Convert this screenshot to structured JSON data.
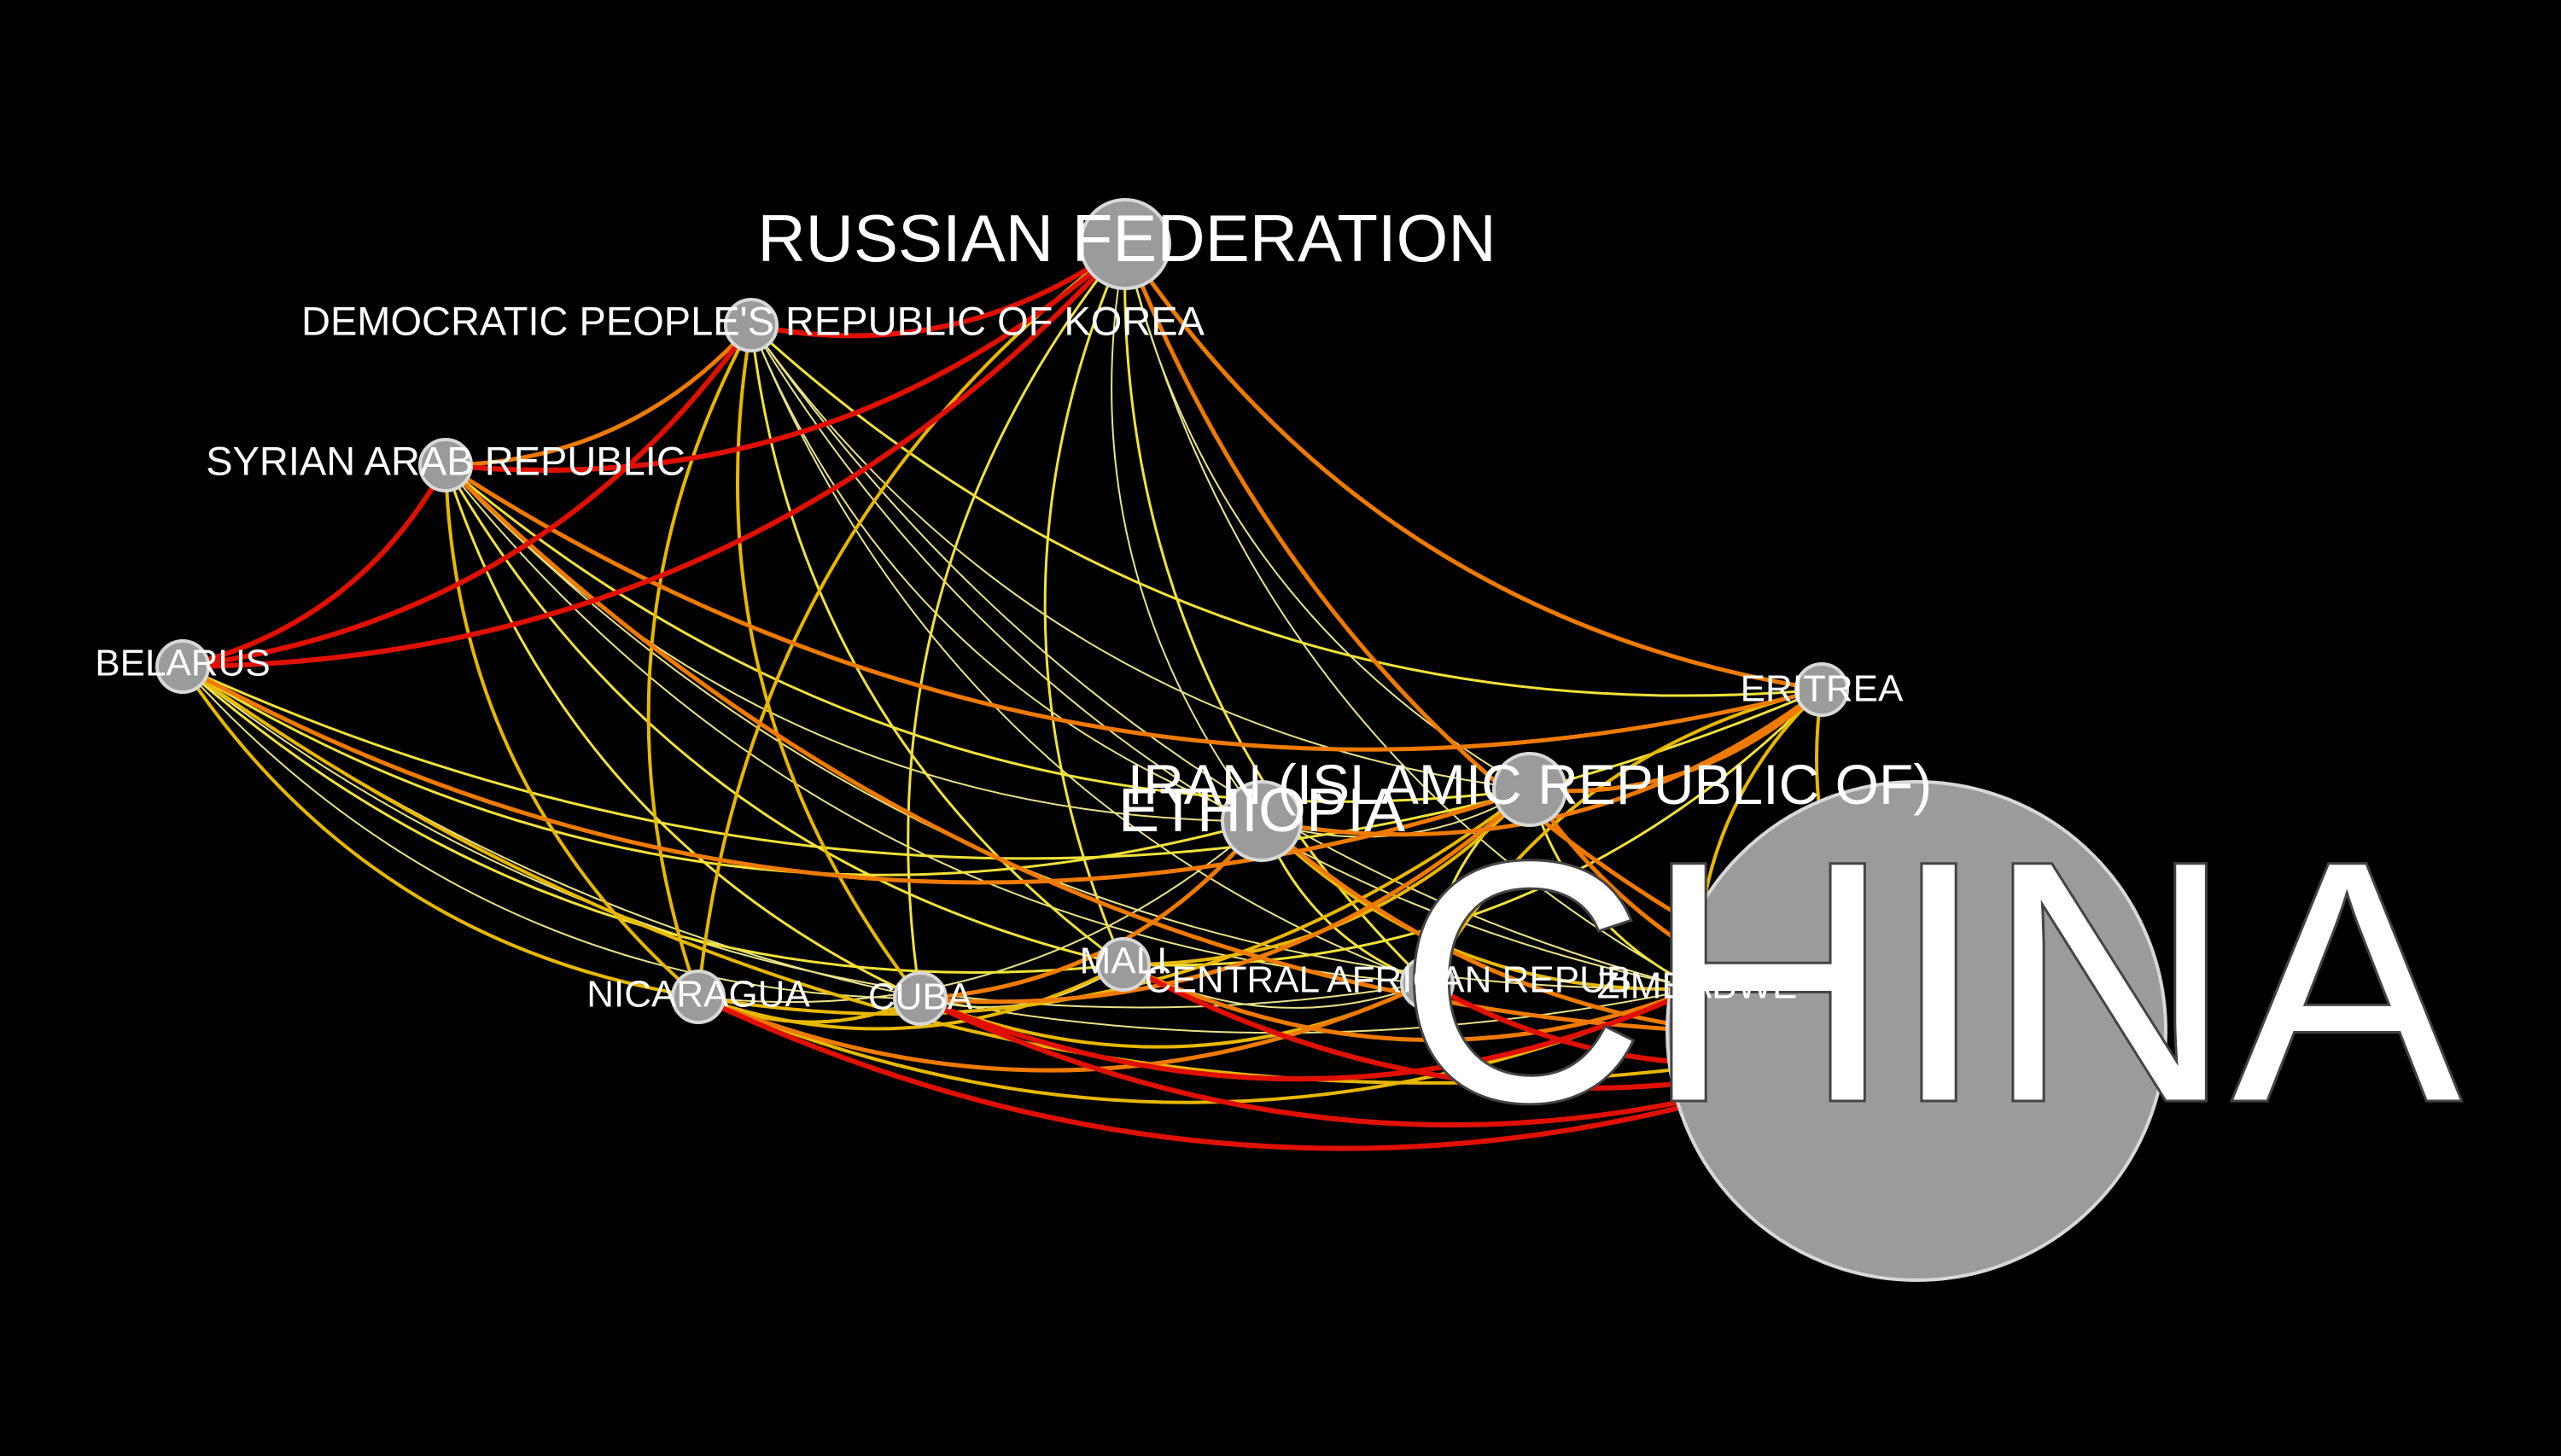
{
  "colors": {
    "background": "#000000",
    "node_fill": "#9b9b9b",
    "node_stroke": "#d8d8d8",
    "label": "#ffffff",
    "edge_weak": "#e8e28a",
    "edge_light": "#f2e23a",
    "edge_medium": "#e8b800",
    "edge_strong": "#ee7a00",
    "edge_strongest": "#e01000"
  },
  "nodes": [
    {
      "id": "china",
      "label": "CHINA",
      "size": "huge"
    },
    {
      "id": "russia",
      "label": "RUSSIAN FEDERATION",
      "size": "large"
    },
    {
      "id": "dprk",
      "label": "DEMOCRATIC PEOPLE'S REPUBLIC OF KOREA",
      "size": "small"
    },
    {
      "id": "syria",
      "label": "SYRIAN ARAB REPUBLIC",
      "size": "small"
    },
    {
      "id": "belarus",
      "label": "BELARUS",
      "size": "small"
    },
    {
      "id": "eritrea",
      "label": "ERITREA",
      "size": "small"
    },
    {
      "id": "iran",
      "label": "IRAN (ISLAMIC REPUBLIC OF)",
      "size": "medium"
    },
    {
      "id": "ethiopia",
      "label": "ETHIOPIA",
      "size": "medium"
    },
    {
      "id": "nicaragua",
      "label": "NICARAGUA",
      "size": "small"
    },
    {
      "id": "cuba",
      "label": "CUBA",
      "size": "small"
    },
    {
      "id": "mali",
      "label": "MALI",
      "size": "small"
    },
    {
      "id": "car",
      "label": "CENTRAL AFRICAN REPUB",
      "size": "small"
    },
    {
      "id": "zimbabwe",
      "label": "ZIMBABWE",
      "size": "small"
    }
  ],
  "edges": [
    {
      "source": "belarus",
      "target": "russia",
      "weight": 5
    },
    {
      "source": "belarus",
      "target": "dprk",
      "weight": 5
    },
    {
      "source": "belarus",
      "target": "syria",
      "weight": 5
    },
    {
      "source": "dprk",
      "target": "russia",
      "weight": 5
    },
    {
      "source": "syria",
      "target": "russia",
      "weight": 5
    },
    {
      "source": "syria",
      "target": "dprk",
      "weight": 4
    },
    {
      "source": "cuba",
      "target": "china",
      "weight": 5
    },
    {
      "source": "mali",
      "target": "china",
      "weight": 5
    },
    {
      "source": "cuba",
      "target": "zimbabwe",
      "weight": 5
    },
    {
      "source": "car",
      "target": "china",
      "weight": 5
    },
    {
      "source": "nicaragua",
      "target": "china",
      "weight": 5
    },
    {
      "source": "syria",
      "target": "eritrea",
      "weight": 4
    },
    {
      "source": "russia",
      "target": "eritrea",
      "weight": 4
    },
    {
      "source": "russia",
      "target": "china",
      "weight": 4
    },
    {
      "source": "syria",
      "target": "china",
      "weight": 4
    },
    {
      "source": "belarus",
      "target": "iran",
      "weight": 4
    },
    {
      "source": "ethiopia",
      "target": "eritrea",
      "weight": 4
    },
    {
      "source": "iran",
      "target": "eritrea",
      "weight": 4
    },
    {
      "source": "ethiopia",
      "target": "china",
      "weight": 4
    },
    {
      "source": "iran",
      "target": "china",
      "weight": 4
    },
    {
      "source": "cuba",
      "target": "iran",
      "weight": 4
    },
    {
      "source": "cuba",
      "target": "ethiopia",
      "weight": 4
    },
    {
      "source": "mali",
      "target": "zimbabwe",
      "weight": 4
    },
    {
      "source": "nicaragua",
      "target": "car",
      "weight": 4
    },
    {
      "source": "dprk",
      "target": "cuba",
      "weight": 3
    },
    {
      "source": "dprk",
      "target": "nicaragua",
      "weight": 3
    },
    {
      "source": "russia",
      "target": "nicaragua",
      "weight": 3
    },
    {
      "source": "belarus",
      "target": "nicaragua",
      "weight": 3
    },
    {
      "source": "belarus",
      "target": "china",
      "weight": 3
    },
    {
      "source": "syria",
      "target": "nicaragua",
      "weight": 3
    },
    {
      "source": "nicaragua",
      "target": "cuba",
      "weight": 3
    },
    {
      "source": "nicaragua",
      "target": "mali",
      "weight": 3
    },
    {
      "source": "nicaragua",
      "target": "zimbabwe",
      "weight": 3
    },
    {
      "source": "nicaragua",
      "target": "iran",
      "weight": 3
    },
    {
      "source": "cuba",
      "target": "car",
      "weight": 3
    },
    {
      "source": "mali",
      "target": "iran",
      "weight": 3
    },
    {
      "source": "ethiopia",
      "target": "zimbabwe",
      "weight": 3
    },
    {
      "source": "eritrea",
      "target": "zimbabwe",
      "weight": 3
    },
    {
      "source": "eritrea",
      "target": "china",
      "weight": 3
    },
    {
      "source": "eritrea",
      "target": "car",
      "weight": 3
    },
    {
      "source": "belarus",
      "target": "ethiopia",
      "weight": 2
    },
    {
      "source": "belarus",
      "target": "eritrea",
      "weight": 2
    },
    {
      "source": "belarus",
      "target": "mali",
      "weight": 2
    },
    {
      "source": "dprk",
      "target": "mali",
      "weight": 2
    },
    {
      "source": "dprk",
      "target": "eritrea",
      "weight": 2
    },
    {
      "source": "russia",
      "target": "cuba",
      "weight": 2
    },
    {
      "source": "russia",
      "target": "mali",
      "weight": 2
    },
    {
      "source": "russia",
      "target": "car",
      "weight": 2
    },
    {
      "source": "syria",
      "target": "cuba",
      "weight": 2
    },
    {
      "source": "syria",
      "target": "mali",
      "weight": 2
    },
    {
      "source": "syria",
      "target": "iran",
      "weight": 2
    },
    {
      "source": "mali",
      "target": "eritrea",
      "weight": 2
    },
    {
      "source": "ethiopia",
      "target": "car",
      "weight": 2
    },
    {
      "source": "iran",
      "target": "zimbabwe",
      "weight": 2
    },
    {
      "source": "iran",
      "target": "car",
      "weight": 2
    },
    {
      "source": "belarus",
      "target": "cuba",
      "weight": 1
    },
    {
      "source": "belarus",
      "target": "car",
      "weight": 1
    },
    {
      "source": "belarus",
      "target": "zimbabwe",
      "weight": 1
    },
    {
      "source": "dprk",
      "target": "ethiopia",
      "weight": 1
    },
    {
      "source": "dprk",
      "target": "iran",
      "weight": 1
    },
    {
      "source": "dprk",
      "target": "zimbabwe",
      "weight": 1
    },
    {
      "source": "dprk",
      "target": "car",
      "weight": 1
    },
    {
      "source": "dprk",
      "target": "china",
      "weight": 1
    },
    {
      "source": "russia",
      "target": "ethiopia",
      "weight": 1
    },
    {
      "source": "russia",
      "target": "iran",
      "weight": 1
    },
    {
      "source": "russia",
      "target": "zimbabwe",
      "weight": 1
    },
    {
      "source": "syria",
      "target": "ethiopia",
      "weight": 1
    },
    {
      "source": "syria",
      "target": "zimbabwe",
      "weight": 1
    },
    {
      "source": "syria",
      "target": "car",
      "weight": 1
    },
    {
      "source": "cuba",
      "target": "mali",
      "weight": 1
    },
    {
      "source": "nicaragua",
      "target": "ethiopia",
      "weight": 1
    },
    {
      "source": "mali",
      "target": "car",
      "weight": 1
    },
    {
      "source": "ethiopia",
      "target": "iran",
      "weight": 1
    }
  ]
}
